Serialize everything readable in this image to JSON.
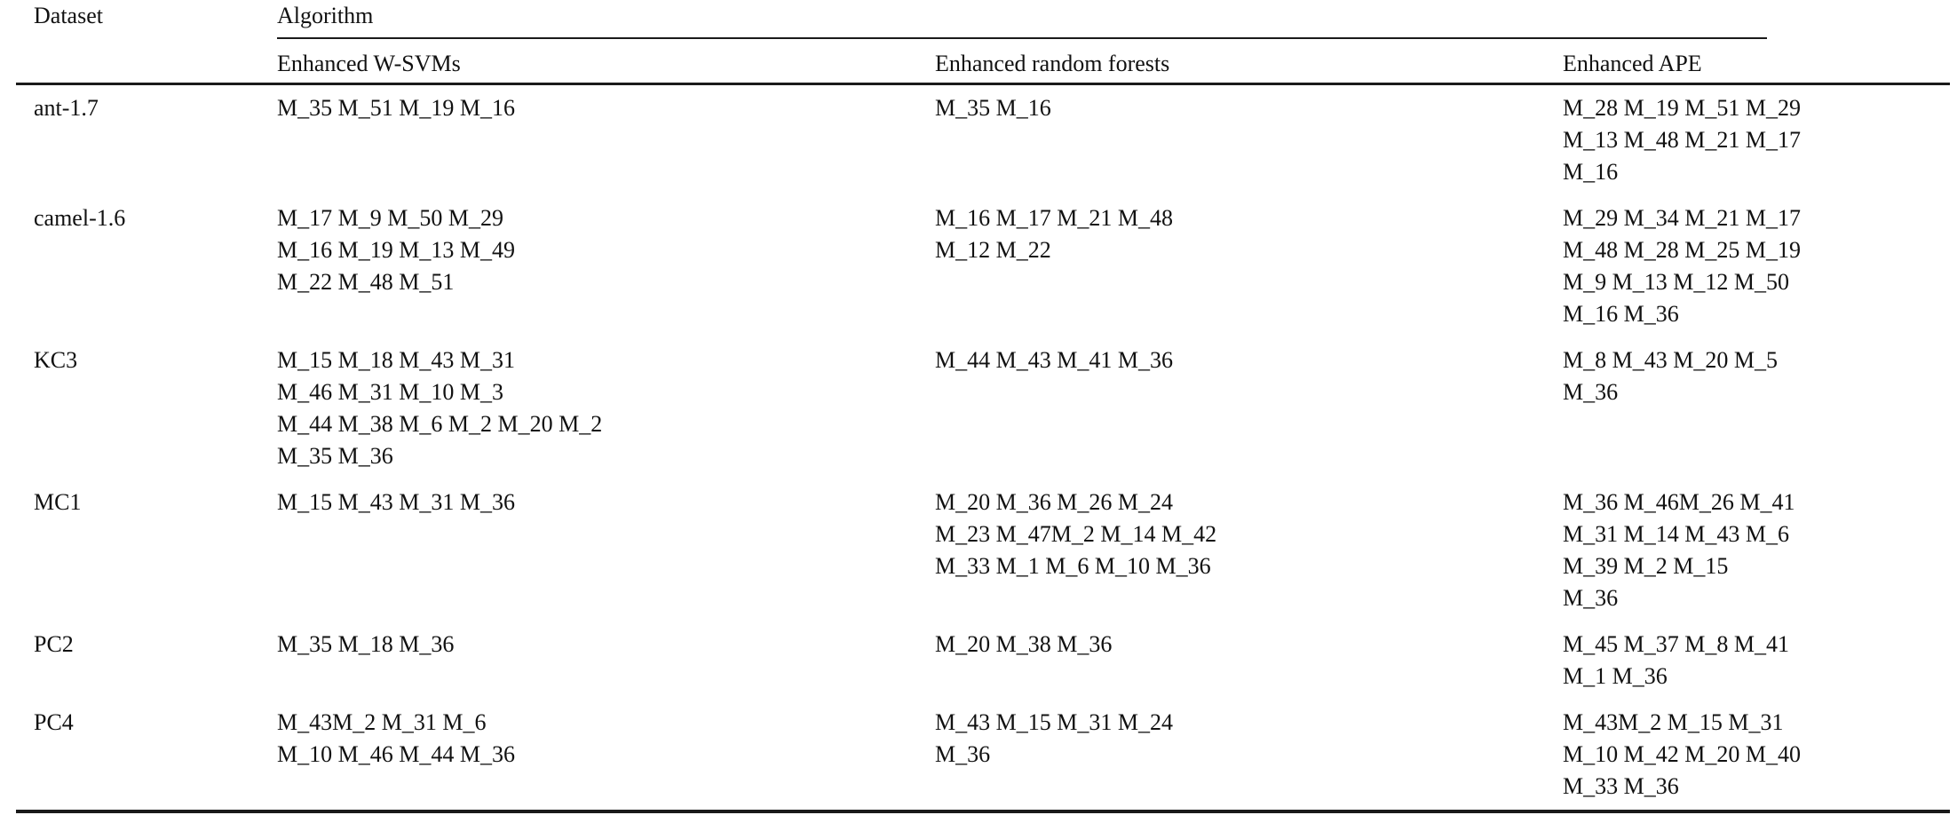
{
  "table": {
    "header": {
      "dataset": "Dataset",
      "algorithm_group": "Algorithm",
      "algorithms": [
        "Enhanced W-SVMs",
        "Enhanced random forests",
        "Enhanced APE"
      ]
    },
    "cell_order": [
      "enhanced_w_svms",
      "enhanced_random_forests",
      "enhanced_ape"
    ],
    "rows": [
      {
        "dataset": "ant-1.7",
        "cells": {
          "enhanced_w_svms": [
            "M_35 M_51 M_19 M_16"
          ],
          "enhanced_random_forests": [
            "M_35 M_16"
          ],
          "enhanced_ape": [
            "M_28 M_19 M_51 M_29",
            "M_13 M_48 M_21 M_17",
            "M_16"
          ]
        }
      },
      {
        "dataset": "camel-1.6",
        "cells": {
          "enhanced_w_svms": [
            "M_17 M_9 M_50 M_29",
            "M_16 M_19 M_13 M_49",
            "M_22 M_48 M_51"
          ],
          "enhanced_random_forests": [
            "M_16 M_17 M_21 M_48",
            "M_12 M_22"
          ],
          "enhanced_ape": [
            "M_29 M_34 M_21 M_17",
            "M_48 M_28 M_25 M_19",
            "M_9 M_13 M_12 M_50",
            "M_16 M_36"
          ]
        }
      },
      {
        "dataset": "KC3",
        "cells": {
          "enhanced_w_svms": [
            "M_15 M_18 M_43 M_31",
            "M_46 M_31 M_10 M_3",
            "M_44 M_38 M_6 M_2 M_20 M_2",
            "M_35 M_36"
          ],
          "enhanced_random_forests": [
            "M_44 M_43 M_41 M_36"
          ],
          "enhanced_ape": [
            "M_8 M_43 M_20 M_5",
            "M_36"
          ]
        }
      },
      {
        "dataset": "MC1",
        "cells": {
          "enhanced_w_svms": [
            "M_15 M_43 M_31 M_36"
          ],
          "enhanced_random_forests": [
            "M_20 M_36 M_26 M_24",
            "M_23 M_47M_2 M_14 M_42",
            "M_33 M_1 M_6 M_10 M_36"
          ],
          "enhanced_ape": [
            "M_36 M_46M_26 M_41",
            "M_31 M_14 M_43 M_6",
            "M_39 M_2 M_15",
            "M_36"
          ]
        }
      },
      {
        "dataset": "PC2",
        "cells": {
          "enhanced_w_svms": [
            "M_35 M_18 M_36"
          ],
          "enhanced_random_forests": [
            "M_20 M_38 M_36"
          ],
          "enhanced_ape": [
            "M_45 M_37 M_8 M_41",
            "M_1 M_36"
          ]
        }
      },
      {
        "dataset": "PC4",
        "cells": {
          "enhanced_w_svms": [
            "M_43M_2 M_31 M_6",
            "M_10 M_46 M_44 M_36"
          ],
          "enhanced_random_forests": [
            "M_43 M_15 M_31 M_24",
            "M_36"
          ],
          "enhanced_ape": [
            "M_43M_2 M_15 M_31",
            "M_10 M_42 M_20 M_40",
            "M_33 M_36"
          ]
        }
      }
    ],
    "colors": {
      "text": "#111111",
      "rule": "#1a1a1a",
      "background": "#ffffff"
    }
  }
}
